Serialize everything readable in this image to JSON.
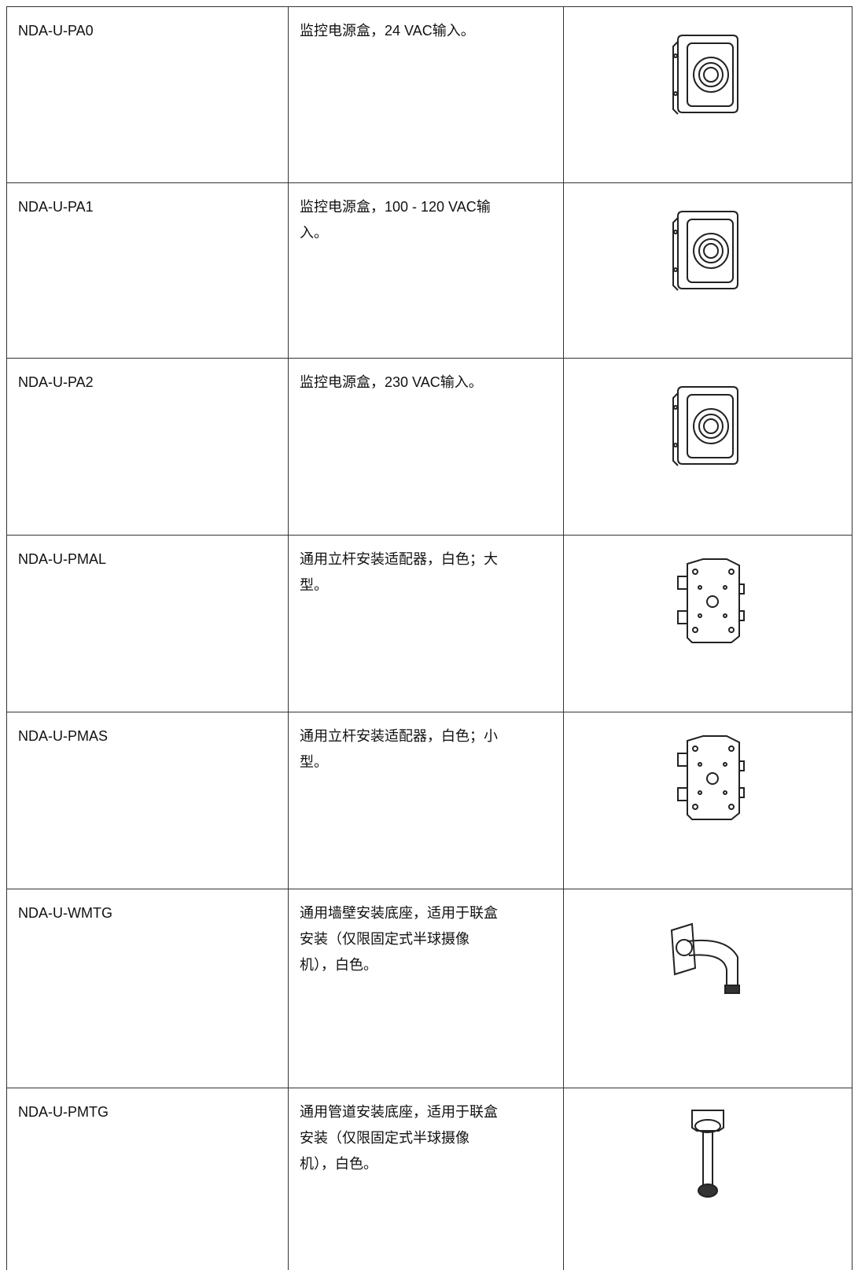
{
  "table": {
    "rows": [
      [
        "NDA-U-PA0",
        [
          "监控电源盒，24 VAC输入。"
        ]
      ],
      [
        "NDA-U-PA1",
        [
          "监控电源盒，100 - 120 VAC输",
          "入。"
        ]
      ],
      [
        "NDA-U-PA2",
        [
          "监控电源盒，230 VAC输入。"
        ]
      ],
      [
        "NDA-U-PMAL",
        [
          "通用立杆安装适配器，白色；大",
          "型。"
        ]
      ],
      [
        "NDA-U-PMAS",
        [
          "通用立杆安装适配器，白色；小",
          "型。"
        ]
      ],
      [
        "NDA-U-WMTG",
        [
          "通用墙壁安装底座，适用于联盒",
          "安装（仅限固定式半球摄像",
          "机），白色。"
        ]
      ],
      [
        "NDA-U-PMTG",
        [
          "通用管道安装底座，适用于联盒",
          "安装（仅限固定式半球摄像",
          "机），白色。"
        ]
      ]
    ]
  }
}
